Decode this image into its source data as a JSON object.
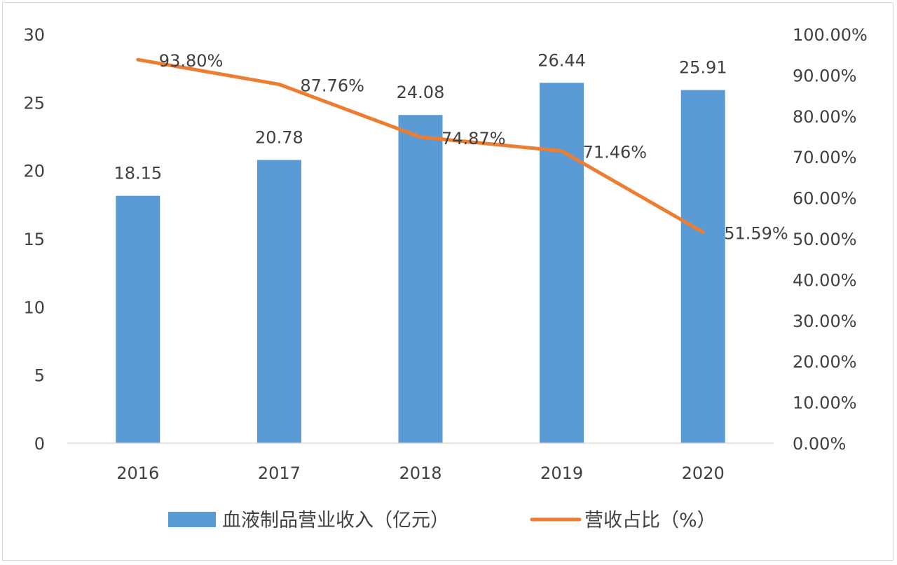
{
  "chart_data": {
    "type": "bar+line",
    "categories": [
      "2016",
      "2017",
      "2018",
      "2019",
      "2020"
    ],
    "series": [
      {
        "name": "血液制品营业收入（亿元）",
        "type": "bar",
        "axis": "left",
        "values": [
          18.15,
          20.78,
          24.08,
          26.44,
          25.91
        ],
        "labels": [
          "18.15",
          "20.78",
          "24.08",
          "26.44",
          "25.91"
        ],
        "color": "#5b9bd5"
      },
      {
        "name": "营收占比（%）",
        "type": "line",
        "axis": "right",
        "values": [
          93.8,
          87.76,
          74.87,
          71.46,
          51.59
        ],
        "labels": [
          "93.80%",
          "87.76%",
          "74.87%",
          "71.46%",
          "51.59%"
        ],
        "color": "#ed7d31"
      }
    ],
    "left_axis": {
      "min": 0,
      "max": 30,
      "ticks": [
        "0",
        "5",
        "10",
        "15",
        "20",
        "25",
        "30"
      ]
    },
    "right_axis": {
      "min": 0,
      "max": 100,
      "ticks": [
        "0.00%",
        "10.00%",
        "20.00%",
        "30.00%",
        "40.00%",
        "50.00%",
        "60.00%",
        "70.00%",
        "80.00%",
        "90.00%",
        "100.00%"
      ]
    },
    "legend": {
      "position": "bottom",
      "items": [
        {
          "label": "血液制品营业收入（亿元）",
          "swatch": "bar"
        },
        {
          "label": "营收占比（%）",
          "swatch": "line"
        }
      ]
    },
    "grid": false
  },
  "axis_color": "#d9d9d9"
}
